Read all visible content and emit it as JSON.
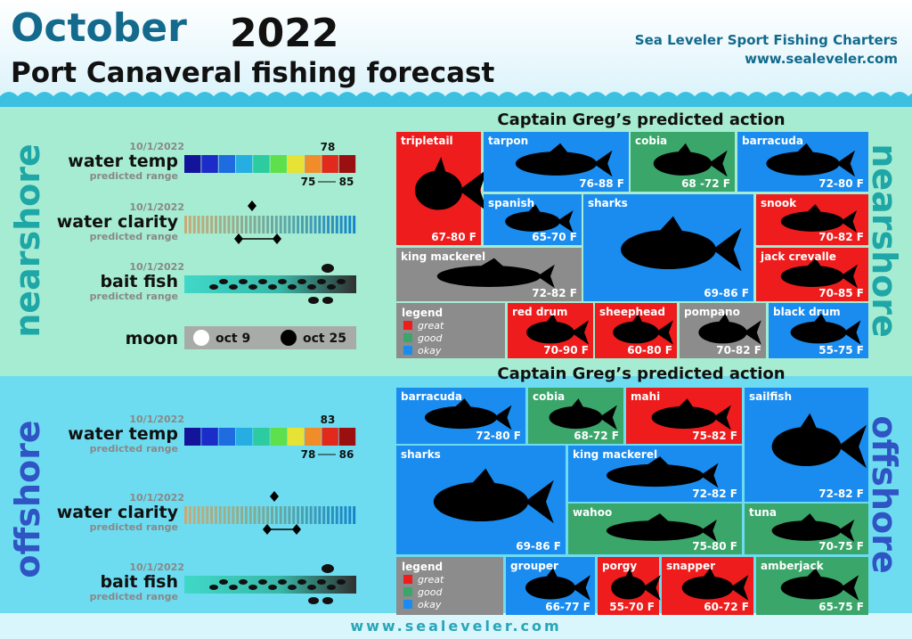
{
  "header": {
    "month": "October",
    "year": "2022",
    "subtitle": "Port Canaveral fishing forecast",
    "company": "Sea Leveler Sport Fishing Charters",
    "website": "www.sealeveler.com"
  },
  "sections": [
    {
      "label": "nearshore",
      "panel_title": "Captain Greg’s predicted action",
      "water_temp": {
        "date": "10/1/2022",
        "label": "water temp",
        "sublabel": "predicted range",
        "value": "78",
        "range_low": "75",
        "range_high": "85"
      },
      "water_clarity": {
        "date": "10/1/2022",
        "label": "water clarity",
        "sublabel": "predicted range"
      },
      "bait_fish": {
        "date": "10/1/2022",
        "label": "bait fish",
        "sublabel": "predicted range"
      },
      "moon": {
        "label": "moon",
        "full": "oct 9",
        "new": "oct 25"
      },
      "legend": {
        "title": "legend",
        "items": [
          {
            "label": "great",
            "color": "#ee1c1c"
          },
          {
            "label": "good",
            "color": "#3aa66a"
          },
          {
            "label": "okay",
            "color": "#1a8cf0"
          }
        ]
      },
      "fish": [
        {
          "name": "tripletail",
          "temp": "67-80 F",
          "color": "#ee1c1c"
        },
        {
          "name": "tarpon",
          "temp": "76-88 F",
          "color": "#1a8cf0"
        },
        {
          "name": "cobia",
          "temp": "68 -72 F",
          "color": "#3aa66a"
        },
        {
          "name": "barracuda",
          "temp": "72-80 F",
          "color": "#1a8cf0"
        },
        {
          "name": "spanish",
          "temp": "65-70 F",
          "color": "#1a8cf0"
        },
        {
          "name": "sharks",
          "temp": "69-86 F",
          "color": "#1a8cf0"
        },
        {
          "name": "snook",
          "temp": "70-82 F",
          "color": "#ee1c1c"
        },
        {
          "name": "king mackerel",
          "temp": "72-82 F",
          "color": "#8c8c8c"
        },
        {
          "name": "jack crevalle",
          "temp": "70-85 F",
          "color": "#ee1c1c"
        },
        {
          "name": "red drum",
          "temp": "70-90 F",
          "color": "#ee1c1c"
        },
        {
          "name": "sheephead",
          "temp": "60-80 F",
          "color": "#ee1c1c"
        },
        {
          "name": "pompano",
          "temp": "70-82 F",
          "color": "#8c8c8c"
        },
        {
          "name": "black drum",
          "temp": "55-75 F",
          "color": "#1a8cf0"
        }
      ]
    },
    {
      "label": "offshore",
      "panel_title": "Captain Greg’s predicted action",
      "water_temp": {
        "date": "10/1/2022",
        "label": "water temp",
        "sublabel": "predicted range",
        "value": "83",
        "range_low": "78",
        "range_high": "86"
      },
      "water_clarity": {
        "date": "10/1/2022",
        "label": "water clarity",
        "sublabel": "predicted range"
      },
      "bait_fish": {
        "date": "10/1/2022",
        "label": "bait fish",
        "sublabel": "predicted range"
      },
      "legend": {
        "title": "legend",
        "items": [
          {
            "label": "great",
            "color": "#ee1c1c"
          },
          {
            "label": "good",
            "color": "#3aa66a"
          },
          {
            "label": "okay",
            "color": "#1a8cf0"
          }
        ]
      },
      "fish": [
        {
          "name": "barracuda",
          "temp": "72-80 F",
          "color": "#1a8cf0"
        },
        {
          "name": "cobia",
          "temp": "68-72 F",
          "color": "#3aa66a"
        },
        {
          "name": "mahi",
          "temp": "75-82 F",
          "color": "#ee1c1c"
        },
        {
          "name": "sailfish",
          "temp": "72-82 F",
          "color": "#1a8cf0"
        },
        {
          "name": "sharks",
          "temp": "69-86 F",
          "color": "#1a8cf0"
        },
        {
          "name": "king mackerel",
          "temp": "72-82 F",
          "color": "#1a8cf0"
        },
        {
          "name": "wahoo",
          "temp": "75-80 F",
          "color": "#3aa66a"
        },
        {
          "name": "tuna",
          "temp": "70-75 F",
          "color": "#3aa66a"
        },
        {
          "name": "grouper",
          "temp": "66-77 F",
          "color": "#1a8cf0"
        },
        {
          "name": "porgy",
          "temp": "55-70 F",
          "color": "#ee1c1c"
        },
        {
          "name": "snapper",
          "temp": "60-72 F",
          "color": "#ee1c1c"
        },
        {
          "name": "amberjack",
          "temp": "65-75 F",
          "color": "#3aa66a"
        }
      ]
    }
  ],
  "footer": "www.sealeveler.com"
}
